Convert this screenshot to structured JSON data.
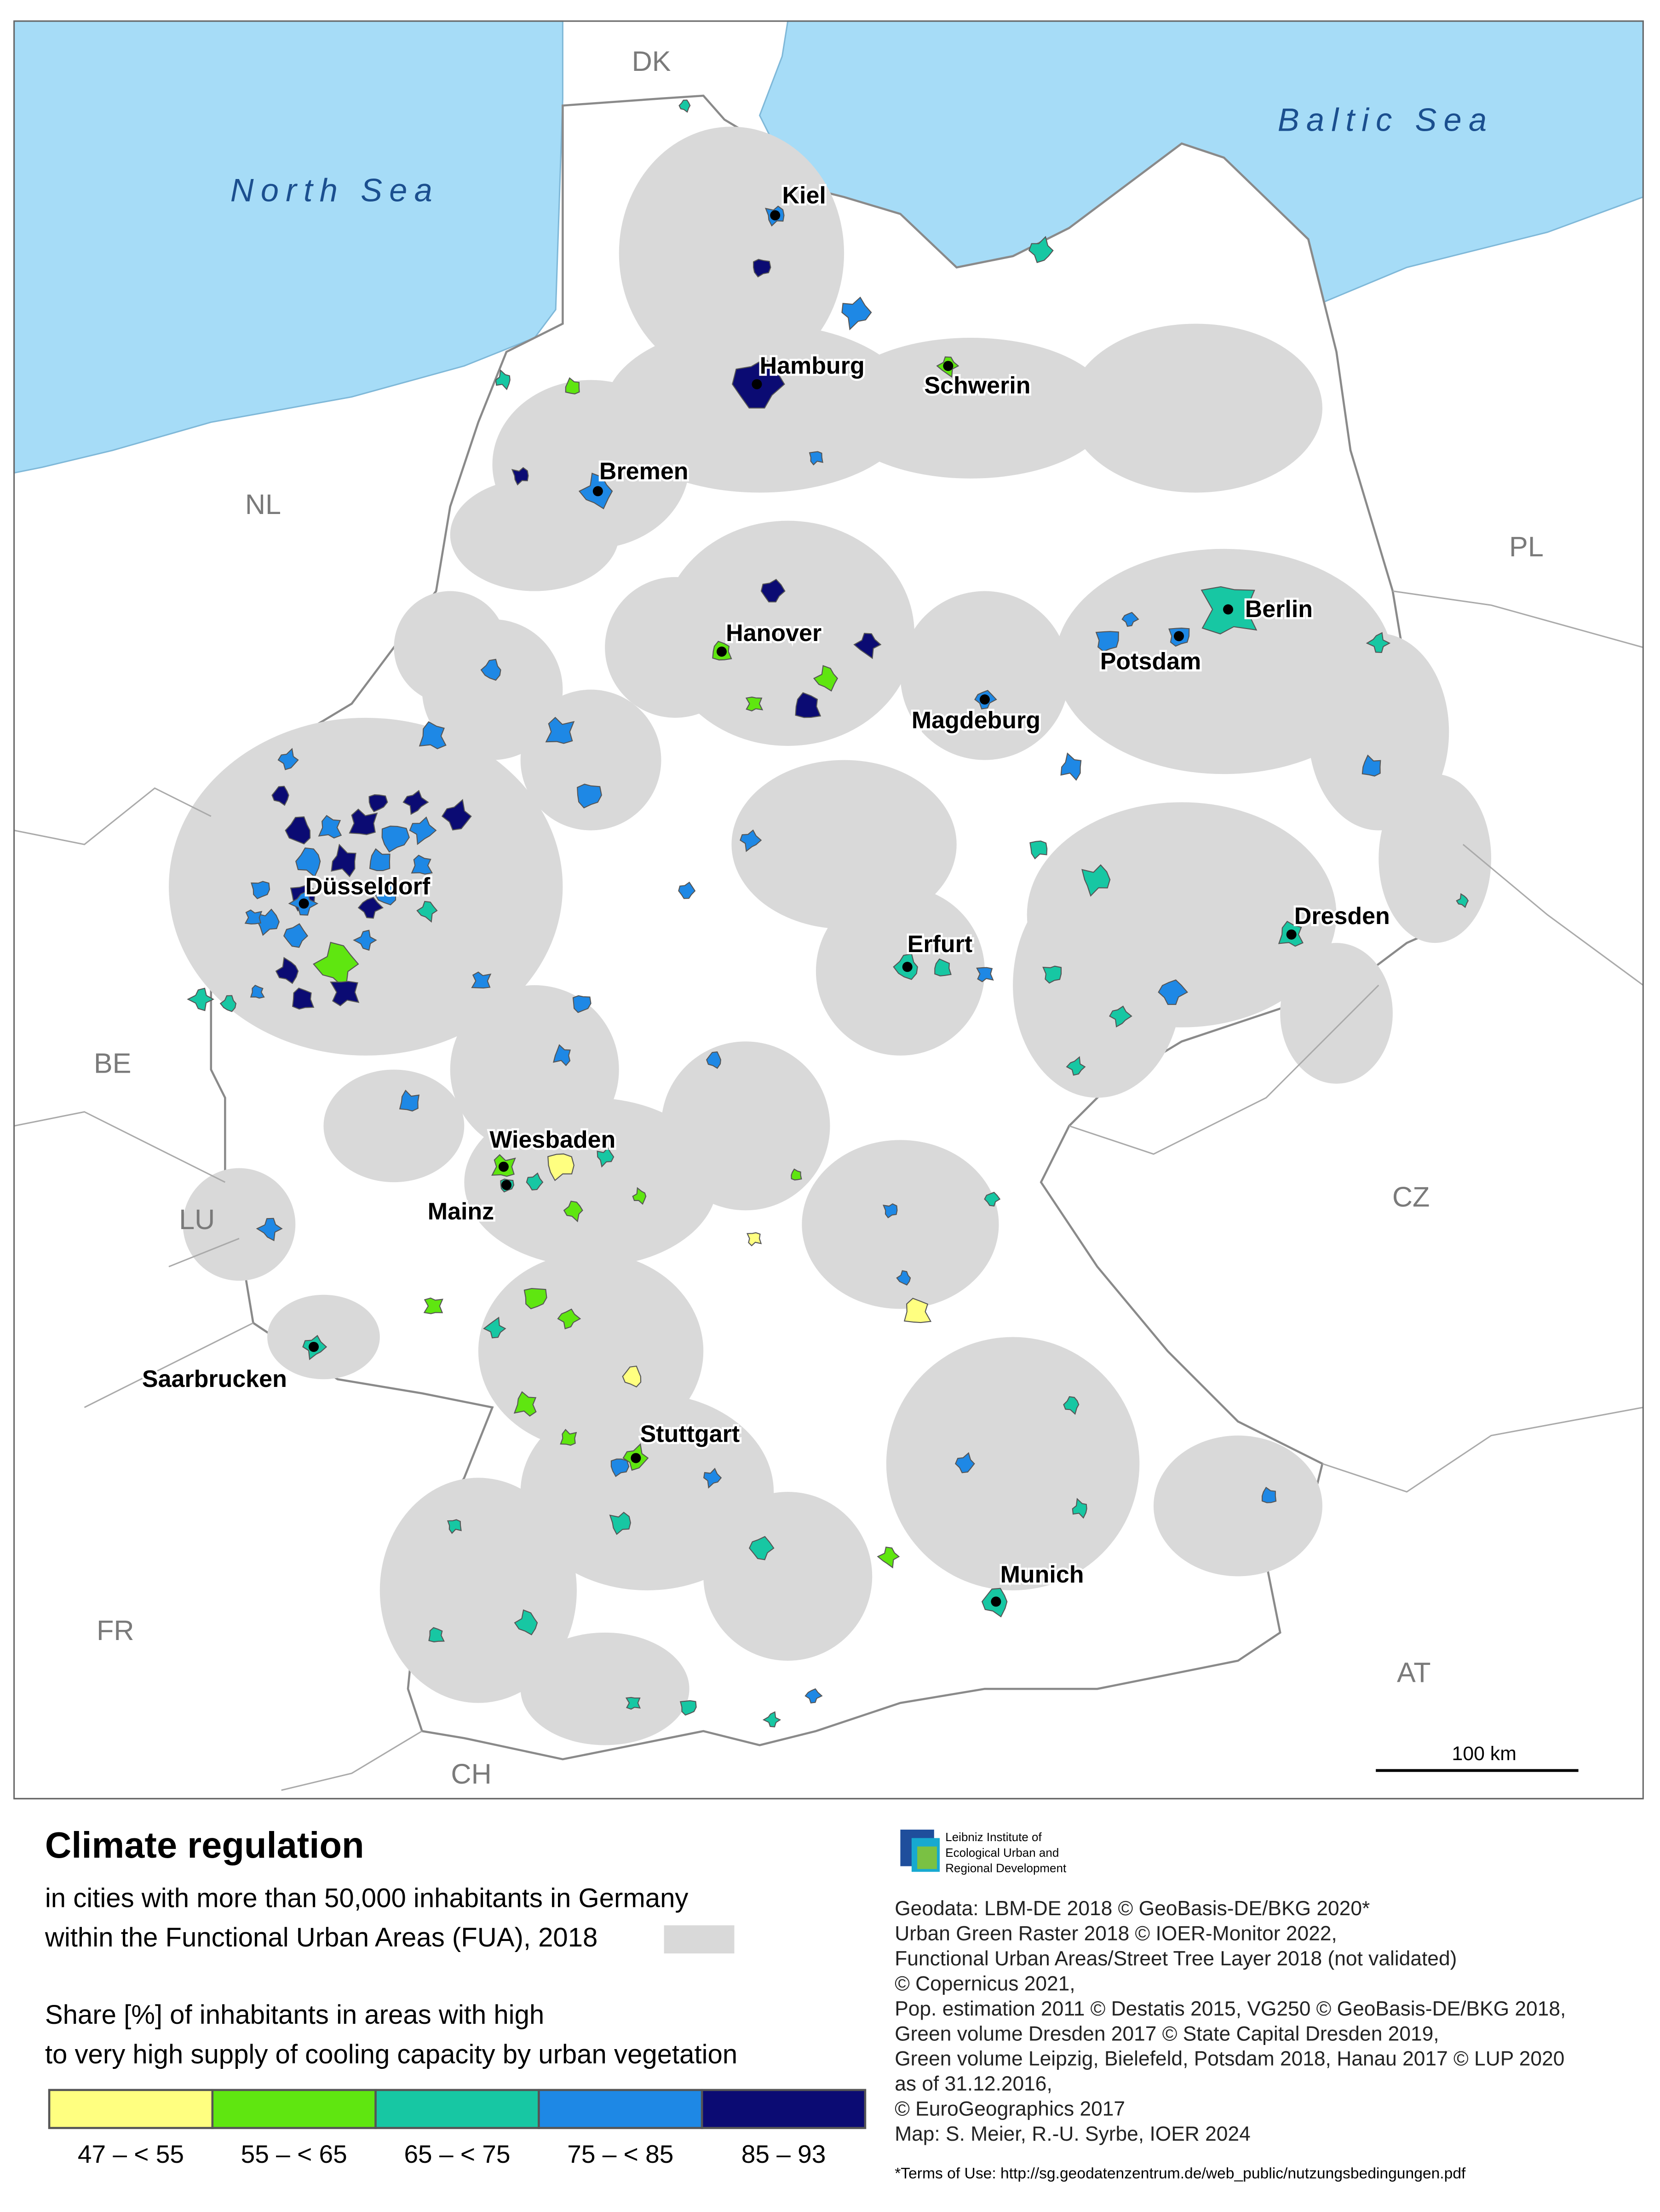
{
  "map": {
    "seas": [
      "North Sea",
      "Baltic Sea"
    ],
    "countries": [
      "DK",
      "NL",
      "PL",
      "BE",
      "LU",
      "CZ",
      "FR",
      "AT",
      "CH"
    ],
    "cities": [
      {
        "name": "Kiel",
        "color": "#1e88e5"
      },
      {
        "name": "Hamburg",
        "color": "#0b0b73"
      },
      {
        "name": "Schwerin",
        "color": "#5fe610"
      },
      {
        "name": "Bremen",
        "color": "#1e88e5"
      },
      {
        "name": "Hanover",
        "color": "#5fe610"
      },
      {
        "name": "Berlin",
        "color": "#17c7a3"
      },
      {
        "name": "Potsdam",
        "color": "#1e88e5"
      },
      {
        "name": "Magdeburg",
        "color": "#1e88e5"
      },
      {
        "name": "Düsseldorf",
        "color": "#1e88e5"
      },
      {
        "name": "Erfurt",
        "color": "#17c7a3"
      },
      {
        "name": "Dresden",
        "color": "#17c7a3"
      },
      {
        "name": "Wiesbaden",
        "color": "#5fe610"
      },
      {
        "name": "Mainz",
        "color": "#17c7a3"
      },
      {
        "name": "Saarbrucken",
        "color": "#17c7a3"
      },
      {
        "name": "Stuttgart",
        "color": "#5fe610"
      },
      {
        "name": "Munich",
        "color": "#17c7a3"
      }
    ],
    "scale_bar": "100 km"
  },
  "legend": {
    "title": "Climate regulation",
    "subtitle": [
      "in cities with more than 50,000 inhabitants in Germany",
      "within the Functional Urban Areas (FUA), 2018"
    ],
    "fua_color": "#d9d9d9",
    "share_title": [
      "Share [%] of inhabitants in areas with high",
      "to very high supply of cooling capacity by urban vegetation"
    ],
    "classes": [
      {
        "label": "47 – < 55",
        "color": "#ffff80"
      },
      {
        "label": "55 – < 65",
        "color": "#5fe610"
      },
      {
        "label": "65 – < 75",
        "color": "#17c7a3"
      },
      {
        "label": "75 – < 85",
        "color": "#1e88e5"
      },
      {
        "label": "85 – 93",
        "color": "#0b0b73"
      }
    ]
  },
  "credits": {
    "institute": [
      "Leibniz Institute of",
      "Ecological Urban and",
      "Regional Development"
    ],
    "sources": [
      "Geodata: LBM-DE 2018 © GeoBasis-DE/BKG 2020*",
      "Urban Green Raster 2018 © IOER-Monitor 2022,",
      "Functional Urban Areas/Street Tree Layer 2018 (not validated)",
      "© Copernicus 2021,",
      "Pop. estimation 2011 © Destatis 2015, VG250 © GeoBasis-DE/BKG 2018,",
      "Green volume Dresden 2017  © State Capital Dresden 2019,",
      "Green volume Leipzig, Bielefeld, Potsdam 2018, Hanau 2017 © LUP 2020",
      "as of 31.12.2016,",
      "© EuroGeographics 2017",
      "Map: S. Meier, R.-U. Syrbe, IOER 2024"
    ],
    "terms": "*Terms of Use: http://sg.geodatenzentrum.de/web_public/nutzungsbedingungen.pdf"
  }
}
